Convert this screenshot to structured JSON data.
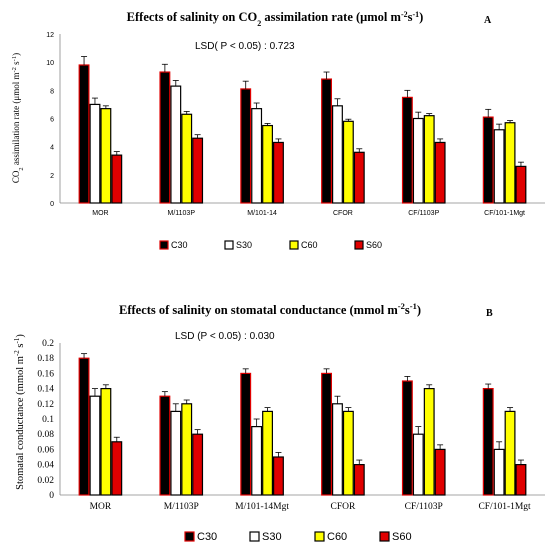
{
  "chart_data": [
    {
      "type": "bar",
      "panel_label": "A",
      "title_main": "Effects of salinity on CO",
      "title_sub": "2",
      "title_rest": " assimilation rate (μmol m",
      "title_sup": "-2",
      "title_s": "s",
      "title_sup2": "-1",
      "title_end": ")",
      "ylabel_main": "CO",
      "ylabel_sub": "2",
      "ylabel_rest": " assimilation rate (μmol m",
      "ylabel_sup": "-2",
      "ylabel_s": " s",
      "ylabel_sup2": "-1",
      "ylabel_end": ")",
      "annotation": "LSD( P < 0.05) : 0.723",
      "ylim": [
        0,
        12
      ],
      "yticks": [
        "0",
        "2",
        "4",
        "6",
        "8",
        "10",
        "12"
      ],
      "categories": [
        "MOR",
        "M/1103P",
        "M/101-14",
        "CFOR",
        "CF/1103P",
        "CF/101-1Mgt"
      ],
      "series": [
        {
          "name": "C30",
          "values": [
            9.8,
            9.3,
            8.1,
            8.8,
            7.5,
            6.1
          ],
          "errors": [
            0.6,
            0.55,
            0.55,
            0.5,
            0.5,
            0.55
          ],
          "color": "#000000",
          "edge": "#e00000"
        },
        {
          "name": "S30",
          "values": [
            7.0,
            8.3,
            6.7,
            6.9,
            6.0,
            5.2
          ],
          "errors": [
            0.45,
            0.4,
            0.4,
            0.5,
            0.45,
            0.4
          ],
          "color": "#ffffff",
          "edge": "#000000"
        },
        {
          "name": "C60",
          "values": [
            6.7,
            6.3,
            5.5,
            5.8,
            6.2,
            5.7
          ],
          "errors": [
            0.2,
            0.2,
            0.15,
            0.15,
            0.15,
            0.15
          ],
          "color": "#ffff00",
          "edge": "#000000"
        },
        {
          "name": "S60",
          "values": [
            3.4,
            4.6,
            4.3,
            3.6,
            4.3,
            2.6
          ],
          "errors": [
            0.25,
            0.25,
            0.25,
            0.25,
            0.25,
            0.3
          ],
          "color": "#e00000",
          "edge": "#000000"
        }
      ]
    },
    {
      "type": "bar",
      "panel_label": "B",
      "title_main": "Effects of salinity on stomatal conductance (mmol m",
      "title_sup": "-2",
      "title_s": "s",
      "title_sup2": "-1",
      "title_end": ")",
      "ylabel_main": "Stomatal conductance (mmol m",
      "ylabel_sup": "-2",
      "ylabel_s": " s",
      "ylabel_sup2": "-1",
      "ylabel_end": ")",
      "annotation": "LSD (P < 0.05) : 0.030",
      "ylim": [
        0,
        0.2
      ],
      "yticks": [
        "0",
        "0.02",
        "0.04",
        "0.06",
        "0.08",
        "0.1",
        "0.12",
        "0.14",
        "0.16",
        "0.18",
        "0.2"
      ],
      "categories": [
        "MOR",
        "M/1103P",
        "M/101-14Mgt",
        "CFOR",
        "CF/1103P",
        "CF/101-1Mgt"
      ],
      "series": [
        {
          "name": "C30",
          "values": [
            0.18,
            0.13,
            0.16,
            0.16,
            0.15,
            0.14
          ],
          "errors": [
            0.006,
            0.006,
            0.006,
            0.006,
            0.006,
            0.006
          ],
          "color": "#000000",
          "edge": "#e00000"
        },
        {
          "name": "S30",
          "values": [
            0.13,
            0.11,
            0.09,
            0.12,
            0.08,
            0.06
          ],
          "errors": [
            0.01,
            0.01,
            0.01,
            0.01,
            0.01,
            0.01
          ],
          "color": "#ffffff",
          "edge": "#000000"
        },
        {
          "name": "C60",
          "values": [
            0.14,
            0.12,
            0.11,
            0.11,
            0.14,
            0.11
          ],
          "errors": [
            0.005,
            0.005,
            0.005,
            0.005,
            0.005,
            0.005
          ],
          "color": "#ffff00",
          "edge": "#000000"
        },
        {
          "name": "S60",
          "values": [
            0.07,
            0.08,
            0.05,
            0.04,
            0.06,
            0.04
          ],
          "errors": [
            0.006,
            0.006,
            0.006,
            0.006,
            0.006,
            0.006
          ],
          "color": "#e00000",
          "edge": "#000000"
        }
      ]
    }
  ]
}
